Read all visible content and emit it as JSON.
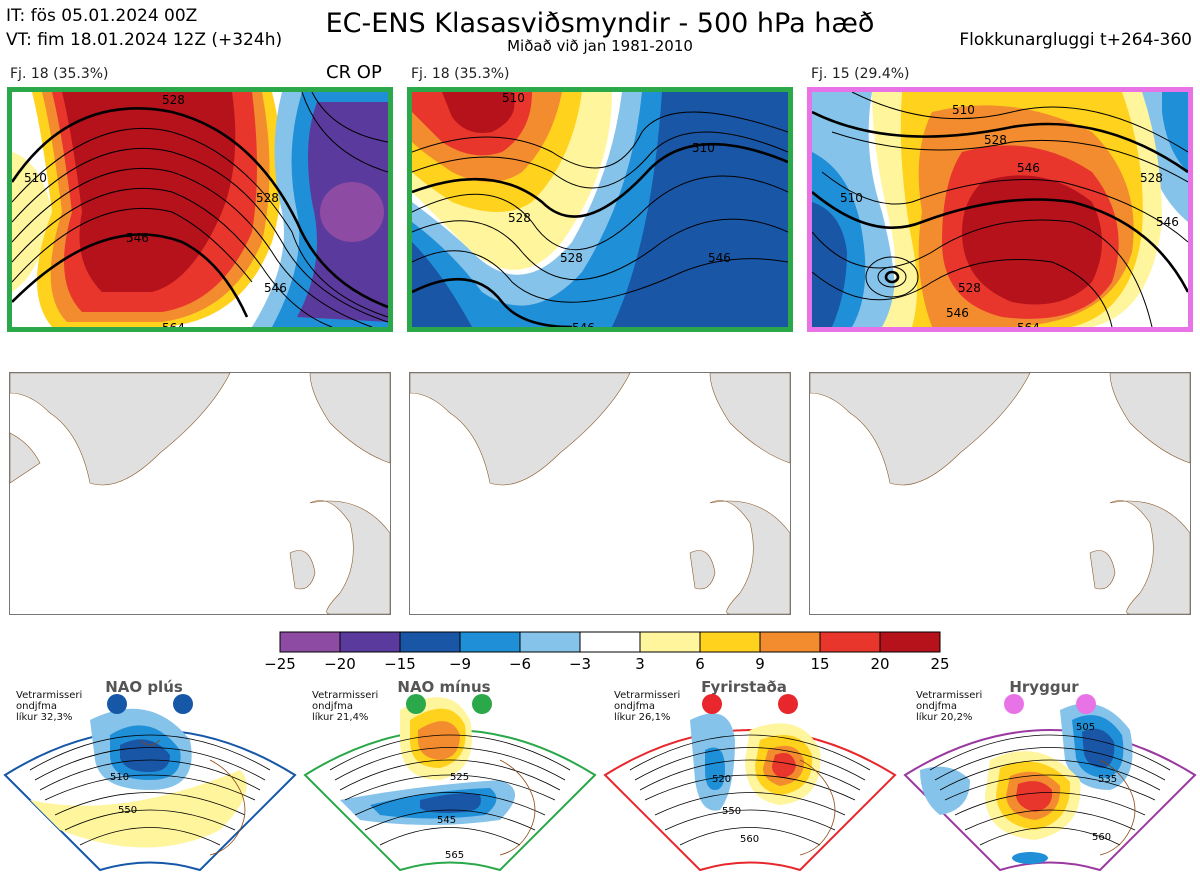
{
  "header": {
    "it": "IT: fös 05.01.2024 00Z",
    "vt": "VT: fim 18.01.2024 12Z  (+324h)",
    "title": "EC-ENS Klasasviðsmyndir - 500 hPa hæð",
    "subtitle": "Miðað við jan 1981-2010",
    "window": "Flokkunargluggi t+264-360"
  },
  "clusters": [
    {
      "label": "Fj. 18 (35.3%)",
      "tag": "CR OP",
      "frame_color": "#2aa84a",
      "contours": [
        "510",
        "528",
        "546",
        "528",
        "546",
        "564"
      ]
    },
    {
      "label": "Fj. 18 (35.3%)",
      "tag": "",
      "frame_color": "#2aa84a",
      "contours": [
        "510",
        "528",
        "510",
        "528",
        "546",
        "546"
      ]
    },
    {
      "label": "Fj. 15 (29.4%)",
      "tag": "",
      "frame_color": "#e873e6",
      "contours": [
        "510",
        "528",
        "546",
        "528",
        "546",
        "510",
        "528",
        "546",
        "564"
      ]
    }
  ],
  "colorbar": {
    "colors": [
      "#8e4ba3",
      "#5a3a9c",
      "#1a56a6",
      "#1f8fd8",
      "#86c3ea",
      "#ffffff",
      "#fff59c",
      "#ffd21d",
      "#f28c2e",
      "#e8362d",
      "#b5121b"
    ],
    "labels": [
      "−25",
      "−20",
      "−15",
      "−9",
      "−6",
      "−3",
      "3",
      "6",
      "9",
      "15",
      "20",
      "25"
    ]
  },
  "regimes": [
    {
      "name": "NAO plús",
      "stat1": "Vetrarmisseri",
      "stat2": "ondjfma",
      "stat3": "líkur 32,3%",
      "color": "#1657a8",
      "contours": [
        "510",
        "550"
      ]
    },
    {
      "name": "NAO mínus",
      "stat1": "Vetrarmisseri",
      "stat2": "ondjfma",
      "stat3": "líkur 21,4%",
      "color": "#2aa84a",
      "contours": [
        "525",
        "545",
        "565"
      ]
    },
    {
      "name": "Fyrirstaða",
      "stat1": "Vetrarmisseri",
      "stat2": "ondjfma",
      "stat3": "líkur 26,1%",
      "color": "#e8272d",
      "contours": [
        "520",
        "550",
        "560"
      ]
    },
    {
      "name": "Hryggur",
      "stat1": "Vetrarmisseri",
      "stat2": "ondjfma",
      "stat3": "líkur 20,2%",
      "color": "#e873e6",
      "contours": [
        "505",
        "535",
        "560"
      ]
    }
  ]
}
